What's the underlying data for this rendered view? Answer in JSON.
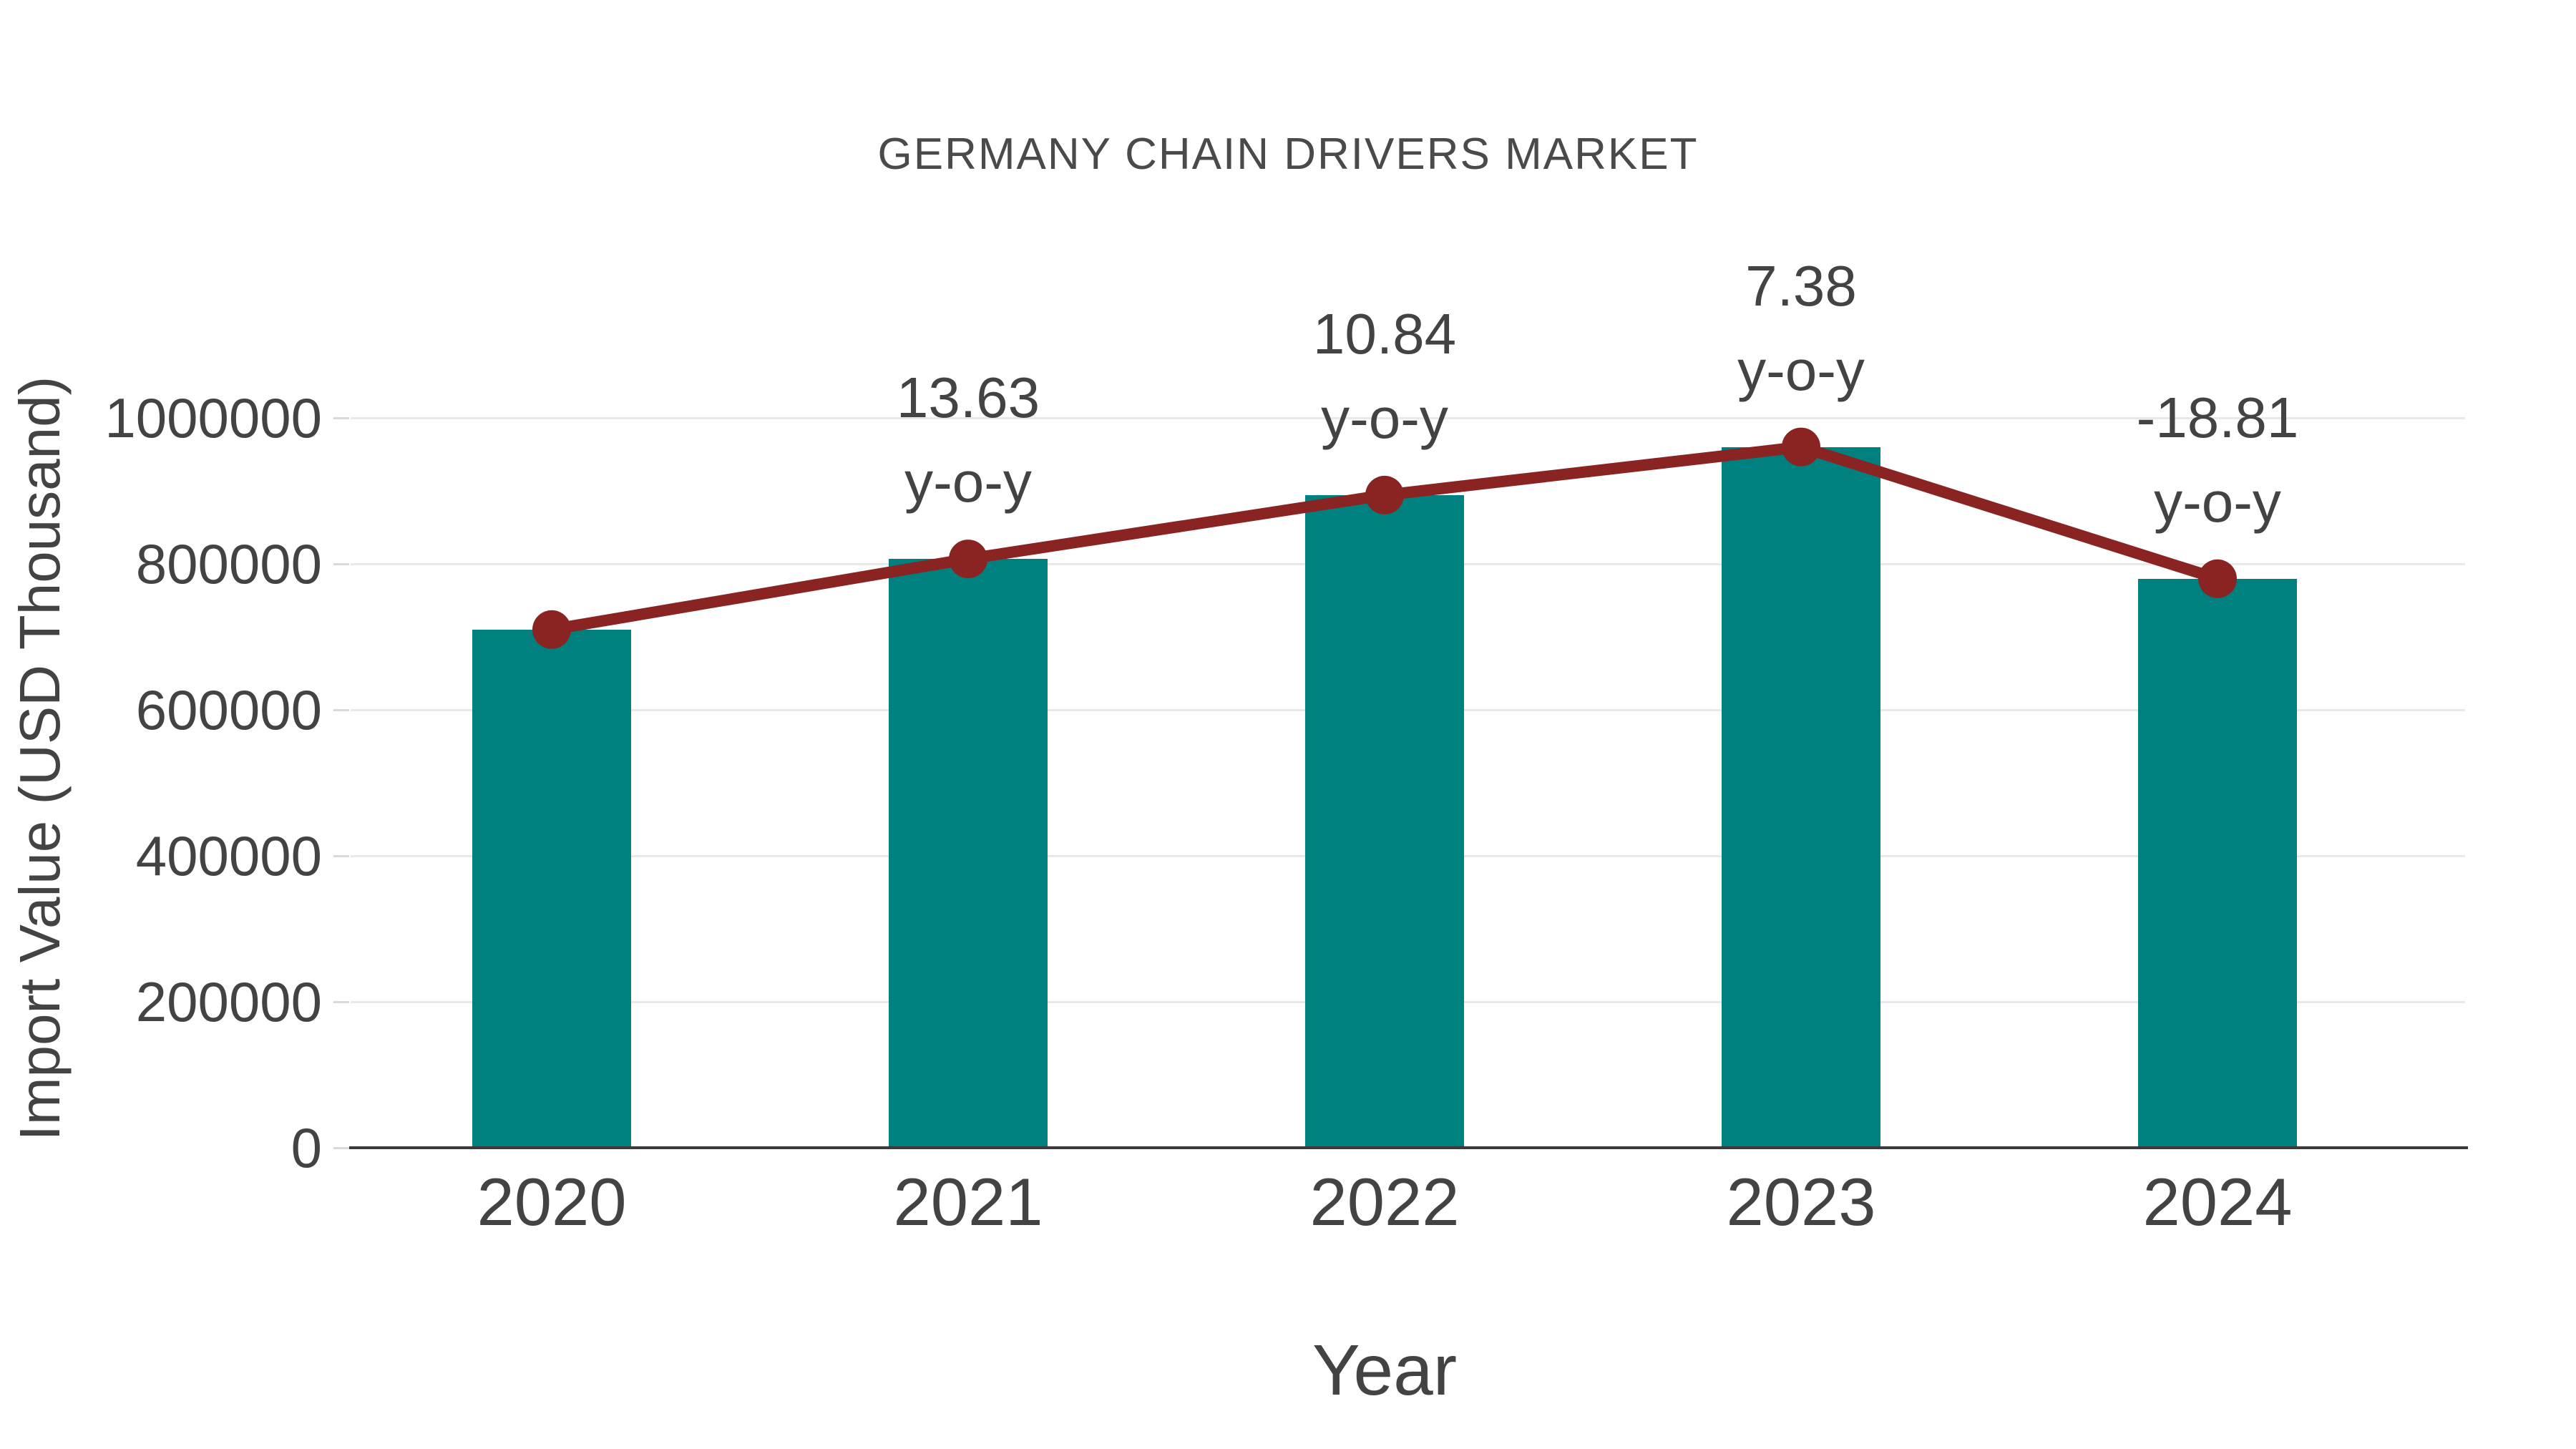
{
  "chart_data": {
    "type": "bar",
    "title": "GERMANY CHAIN DRIVERS MARKET",
    "xlabel": "Year",
    "ylabel": "Import Value (USD Thousand)",
    "categories": [
      "2020",
      "2021",
      "2022",
      "2023",
      "2024"
    ],
    "series": [
      {
        "name": "Import Value (USD Thousand)",
        "type": "bar",
        "color": "#00807e",
        "values": [
          710000,
          806800,
          894200,
          960200,
          779600
        ]
      },
      {
        "name": "y-o-y change (%)",
        "type": "line",
        "color": "#8a2423",
        "values": [
          null,
          13.63,
          10.84,
          7.38,
          -18.81
        ]
      }
    ],
    "annotations": [
      {
        "category": "2021",
        "value_label": "13.63",
        "suffix": "y-o-y"
      },
      {
        "category": "2022",
        "value_label": "10.84",
        "suffix": "y-o-y"
      },
      {
        "category": "2023",
        "value_label": "7.38",
        "suffix": "y-o-y"
      },
      {
        "category": "2024",
        "value_label": "-18.81",
        "suffix": "y-o-y"
      }
    ],
    "yticks": [
      "0",
      "200000",
      "400000",
      "600000",
      "800000",
      "1000000"
    ],
    "ylim": [
      0,
      1000000
    ],
    "grid": "horizontal",
    "legend_position": "none",
    "colors": {
      "bar": "#00807e",
      "line": "#8a2423",
      "text": "#434343",
      "gridline": "#e9e9e9",
      "axis": "#3a3a3a"
    }
  }
}
